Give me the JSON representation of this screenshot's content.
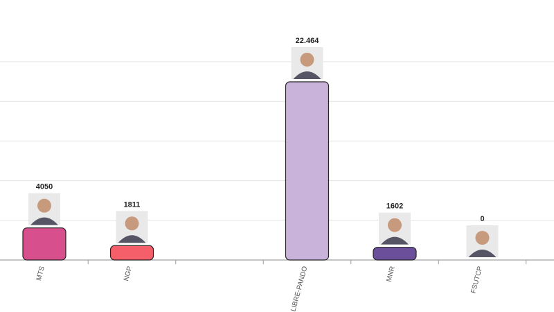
{
  "chart_data": {
    "type": "bar",
    "categories": [
      "MTS",
      "NGP",
      null,
      "LIBRE-PANDO",
      "MNR",
      "FSUTCP",
      null
    ],
    "values": [
      4050,
      1811,
      0,
      22464,
      1602,
      0,
      0
    ],
    "value_labels": [
      "4050",
      "1811",
      null,
      "22.464",
      "1602",
      "0",
      null
    ],
    "colors": [
      "#d84f8e",
      "#f55f69",
      "#333333",
      "#cab3da",
      "#6b4f9b",
      "#333333",
      "#333333"
    ],
    "ylim": [
      0,
      25000
    ],
    "yticks": [
      0,
      5000,
      10000,
      15000,
      20000,
      25000
    ],
    "grid": true
  }
}
